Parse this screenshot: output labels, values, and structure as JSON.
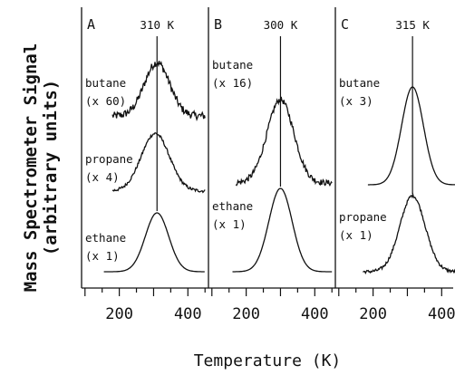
{
  "chart_data": {
    "type": "line",
    "y_axis_label": [
      "Mass Spectrometer Signal",
      "(arbitrary units)"
    ],
    "x_axis_label": "Temperature (K)",
    "x_ticks": [
      "200",
      "400"
    ],
    "xlim": [
      90,
      460
    ],
    "panels": [
      {
        "letter": "A",
        "peak_label": "310 K",
        "peak_temperature": 310,
        "series": [
          {
            "name": "butane",
            "scale": "(x 60)",
            "peak_T": 310,
            "width": 52,
            "amplitude": 0.95,
            "noise": 0.14,
            "start": 180,
            "end": 450
          },
          {
            "name": "propane",
            "scale": "(x 4)",
            "peak_T": 305,
            "width": 58,
            "amplitude": 0.95,
            "noise": 0.05,
            "start": 180,
            "end": 450
          },
          {
            "name": "ethane",
            "scale": "(x 1)",
            "peak_T": 310,
            "width": 48,
            "amplitude": 1.0,
            "noise": 0.0,
            "start": 155,
            "end": 450
          }
        ]
      },
      {
        "letter": "B",
        "peak_label": "300 K",
        "peak_temperature": 300,
        "series": [
          {
            "name": "butane",
            "scale": "(x 16)",
            "peak_T": 300,
            "width": 55,
            "amplitude": 1.0,
            "noise": 0.07,
            "start": 170,
            "end": 450
          },
          {
            "name": "ethane",
            "scale": "(x 1)",
            "peak_T": 300,
            "width": 48,
            "amplitude": 1.0,
            "noise": 0.0,
            "start": 160,
            "end": 450
          }
        ]
      },
      {
        "letter": "C",
        "peak_label": "315 K",
        "peak_temperature": 315,
        "series": [
          {
            "name": "butane",
            "scale": "(x 3)",
            "peak_T": 315,
            "width": 45,
            "amplitude": 1.0,
            "noise": 0.0,
            "start": 185,
            "end": 450
          },
          {
            "name": "propane",
            "scale": "(x 1)",
            "peak_T": 315,
            "width": 52,
            "amplitude": 1.0,
            "noise": 0.04,
            "start": 170,
            "end": 450
          }
        ]
      }
    ]
  }
}
